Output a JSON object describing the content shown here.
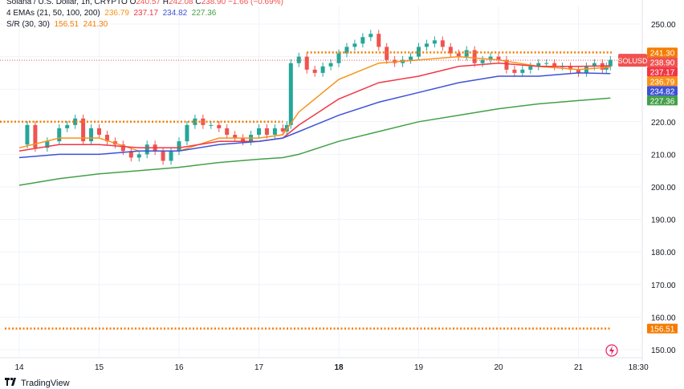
{
  "legend": {
    "title_line": {
      "symbol": "Solana / U.S. Dollar, 1h, CRYPTO",
      "o_label": "O",
      "o": "240.57",
      "h_label": "H",
      "h": "242.08",
      "c_label": "C",
      "c": "238.90",
      "chg": "−1.66 (−0.69%)"
    },
    "emas": {
      "label": "4 EMAs (21, 50, 100, 200)",
      "v21": "236.79",
      "v50": "237.17",
      "v100": "234.82",
      "v200": "227.36"
    },
    "sr": {
      "label": "S/R (30, 30)",
      "support": "156.51",
      "resistance": "241.30"
    }
  },
  "symbol_tag": "SOLUSD",
  "branding": "TradingView",
  "colors": {
    "up": "#26a69a",
    "down": "#ef5350",
    "ema21": "#f7931a",
    "ema50": "#f23645",
    "ema100": "#3f51d6",
    "ema200": "#43a047",
    "sr": "#f57c00",
    "grid": "#f0f3fa",
    "text": "#131722"
  },
  "chart_data": {
    "type": "line",
    "title": "Solana / U.S. Dollar, 1h, CRYPTO",
    "ylim": [
      146,
      254
    ],
    "yticks": [
      150,
      160,
      170,
      180,
      190,
      200,
      210,
      220,
      230,
      240,
      250
    ],
    "xtick_labels": [
      "14",
      "15",
      "16",
      "17",
      "18",
      "19",
      "20",
      "21",
      "18:30"
    ],
    "x_day_values": [
      0,
      1,
      2,
      3,
      4,
      5,
      6,
      7,
      7.75
    ],
    "grid": true,
    "series": [
      {
        "name": "EMA 21",
        "x": [
          0,
          0.5,
          1,
          1.5,
          2,
          2.5,
          3,
          3.3,
          3.5,
          4,
          4.5,
          5,
          5.5,
          6,
          6.5,
          7,
          7.4
        ],
        "values": [
          212,
          215,
          215,
          211,
          211,
          215,
          215,
          216,
          223,
          233,
          238,
          239,
          240,
          239,
          237,
          236,
          236.8
        ]
      },
      {
        "name": "EMA 50",
        "x": [
          0,
          0.5,
          1,
          1.5,
          2,
          2.5,
          3,
          3.3,
          3.5,
          4,
          4.5,
          5,
          5.5,
          6,
          6.5,
          7,
          7.4
        ],
        "values": [
          211,
          213,
          213,
          212,
          212,
          214,
          214,
          215,
          219,
          227,
          232,
          234,
          237,
          238,
          237,
          237,
          237.2
        ]
      },
      {
        "name": "EMA 100",
        "x": [
          0,
          0.5,
          1,
          1.5,
          2,
          2.5,
          3,
          3.3,
          3.5,
          4,
          4.5,
          5,
          5.5,
          6,
          6.5,
          7,
          7.4
        ],
        "values": [
          209,
          210,
          210,
          211,
          211,
          213,
          214,
          215,
          217,
          222,
          226,
          229,
          232,
          234,
          234,
          235,
          234.8
        ]
      },
      {
        "name": "EMA 200",
        "x": [
          0,
          0.5,
          1,
          1.5,
          2,
          2.5,
          3,
          3.3,
          3.5,
          4,
          4.5,
          5,
          5.5,
          6,
          6.5,
          7,
          7.4
        ],
        "values": [
          200.5,
          202.5,
          204,
          205,
          206,
          207.5,
          208.5,
          209,
          210,
          214,
          217,
          220,
          222,
          224,
          225.5,
          226.5,
          227.3
        ]
      }
    ],
    "price_line": {
      "name": "SOLUSD",
      "x": [
        -0.05,
        0.1,
        0.2,
        0.35,
        0.5,
        0.6,
        0.7,
        0.8,
        0.9,
        1.0,
        1.1,
        1.2,
        1.3,
        1.4,
        1.5,
        1.6,
        1.7,
        1.8,
        1.9,
        2.0,
        2.1,
        2.2,
        2.3,
        2.4,
        2.5,
        2.6,
        2.7,
        2.8,
        2.9,
        3.0,
        3.1,
        3.2,
        3.3,
        3.35,
        3.4,
        3.5,
        3.6,
        3.7,
        3.8,
        3.9,
        4.0,
        4.1,
        4.2,
        4.3,
        4.4,
        4.5,
        4.6,
        4.7,
        4.8,
        4.9,
        5.0,
        5.1,
        5.2,
        5.3,
        5.4,
        5.5,
        5.6,
        5.7,
        5.8,
        5.9,
        6.0,
        6.1,
        6.2,
        6.3,
        6.4,
        6.5,
        6.6,
        6.7,
        6.8,
        6.9,
        7.0,
        7.1,
        7.2,
        7.3,
        7.35,
        7.4
      ],
      "values": [
        213,
        219,
        212,
        214,
        218,
        219,
        221,
        214,
        218,
        216,
        214,
        213,
        211,
        209,
        210,
        213,
        211,
        208,
        211,
        214,
        219,
        221,
        219,
        219,
        218,
        216,
        215,
        214,
        216,
        218,
        216,
        218,
        217,
        219,
        238,
        240,
        236,
        235,
        237,
        238,
        241,
        243,
        244,
        246,
        247,
        243,
        239,
        238,
        239,
        240,
        243,
        244,
        245,
        243,
        241,
        240,
        242,
        238,
        239,
        240,
        239,
        236,
        235,
        236,
        237,
        238,
        238,
        237,
        237,
        236,
        235,
        237,
        238,
        236,
        237,
        239
      ]
    },
    "sr_levels": [
      {
        "name": "Resistance",
        "value": 241.3
      },
      {
        "name": "Support",
        "value": 156.51
      }
    ],
    "price_labels": [
      {
        "value": 241.3,
        "text": "241.30",
        "color": "#f57c00"
      },
      {
        "value": 238.9,
        "text": "238.90",
        "color": "#ef5350"
      },
      {
        "value": 237.17,
        "text": "237.17",
        "color": "#f23645"
      },
      {
        "value": 236.79,
        "text": "236.79",
        "color": "#f7931a"
      },
      {
        "value": 234.82,
        "text": "234.82",
        "color": "#3f51d6"
      },
      {
        "value": 227.36,
        "text": "227.36",
        "color": "#43a047"
      },
      {
        "value": 156.51,
        "text": "156.51",
        "color": "#f57c00"
      }
    ]
  }
}
